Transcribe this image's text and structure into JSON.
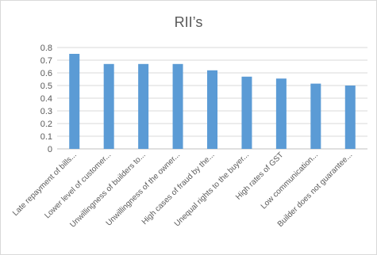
{
  "chart_data": {
    "type": "bar",
    "title": "RII’s",
    "xlabel": "",
    "ylabel": "",
    "ylim": [
      0,
      0.8
    ],
    "yticks": [
      0,
      0.1,
      0.2,
      0.3,
      0.4,
      0.5,
      0.6,
      0.7,
      0.8
    ],
    "ytick_labels": [
      "0",
      "0.1",
      "0.2",
      "0.3",
      "0.4",
      "0.5",
      "0.6",
      "0.7",
      "0.8"
    ],
    "grid": true,
    "legend": "none",
    "bar_color": "#5b9bd5",
    "categories": [
      "Late repayment of bills...",
      "Lower level of customer...",
      "Unwillingness of builders to...",
      "Unwillingness of the owner...",
      "High cases of fraud by the...",
      "Unequal rights to the buyer...",
      "High rates of GST",
      "Low communication...",
      "Builder does not guarantee..."
    ],
    "values": [
      0.75,
      0.67,
      0.67,
      0.67,
      0.62,
      0.57,
      0.555,
      0.515,
      0.5
    ]
  }
}
